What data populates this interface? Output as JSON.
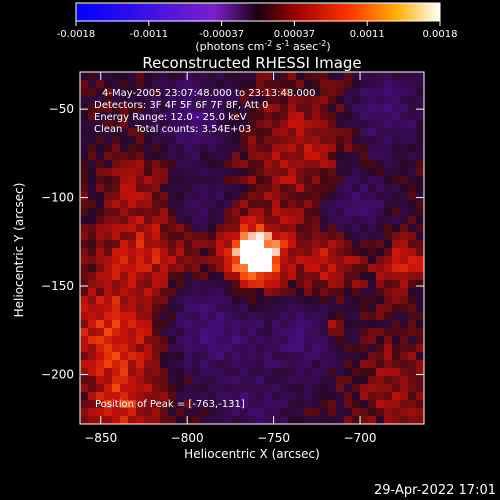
{
  "chart_data": {
    "type": "heatmap",
    "title": "Reconstructed RHESSI Image",
    "xlabel": "Heliocentric X (arcsec)",
    "ylabel": "Heliocentric Y (arcsec)",
    "xlim": [
      -862,
      -663
    ],
    "ylim": [
      -228,
      -29
    ],
    "xticks": [
      -850,
      -800,
      -750,
      -700
    ],
    "yticks": [
      -50,
      -100,
      -150,
      -200
    ],
    "colorbar": {
      "vmin": -0.0018,
      "vmax": 0.0018,
      "ticks": [
        "-0.0018",
        "-0.0011",
        "-0.00037",
        "0.00037",
        "0.0011",
        "0.0018"
      ],
      "unit_label": "(photons cm",
      "unit_sup1": "-2",
      "unit_mid": " s",
      "unit_sup2": "-1",
      "unit_mid2": " asec",
      "unit_sup3": "-2",
      "unit_end": ")"
    },
    "annotations": {
      "time": "4-May-2005 23:07:48.000 to 23:13:48.000",
      "detectors": "Detectors: 3F 4F 5F 6F 7F 8F, Att 0",
      "energy": "Energy Range: 12.0 - 25.0 keV",
      "clean": "Clean    Total counts: 3.54E+03",
      "peak": "Position of Peak = [-763,-131]"
    },
    "peak": {
      "x": -763,
      "y": -131,
      "value": 0.0018
    }
  },
  "footer": {
    "date": "29-Apr-2022 17:01"
  }
}
